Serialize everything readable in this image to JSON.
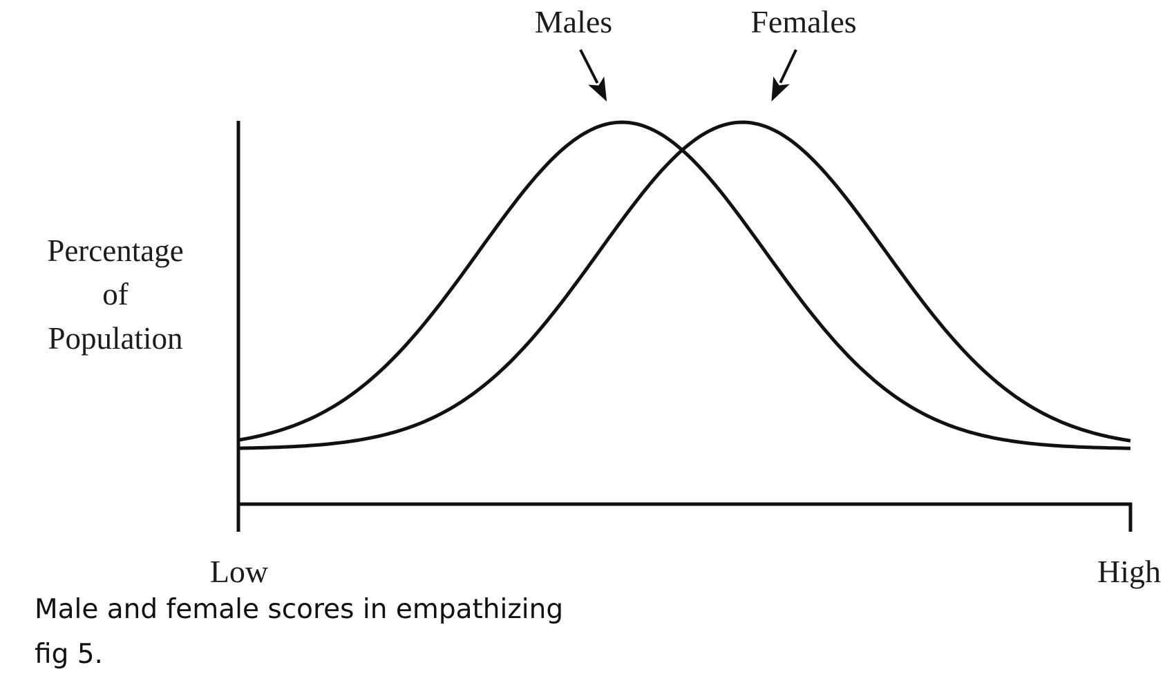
{
  "chart_data": {
    "type": "line",
    "ylabel": [
      "Percentage",
      "of",
      "Population"
    ],
    "x_tick_labels": [
      "Low",
      "High"
    ],
    "xlim": [
      0,
      1
    ],
    "ylim": [
      0,
      1
    ],
    "grid": false,
    "annotations": [
      {
        "text": "Males",
        "points_to": "Males"
      },
      {
        "text": "Females",
        "points_to": "Females"
      }
    ],
    "series": [
      {
        "name": "Males",
        "mean": 0.43,
        "sd": 0.16,
        "peak": 1.0
      },
      {
        "name": "Females",
        "mean": 0.565,
        "sd": 0.16,
        "peak": 1.0
      }
    ],
    "line_color": "#111111"
  },
  "caption": {
    "line1": "Male and female scores in empathizing",
    "line2": "fig 5."
  }
}
